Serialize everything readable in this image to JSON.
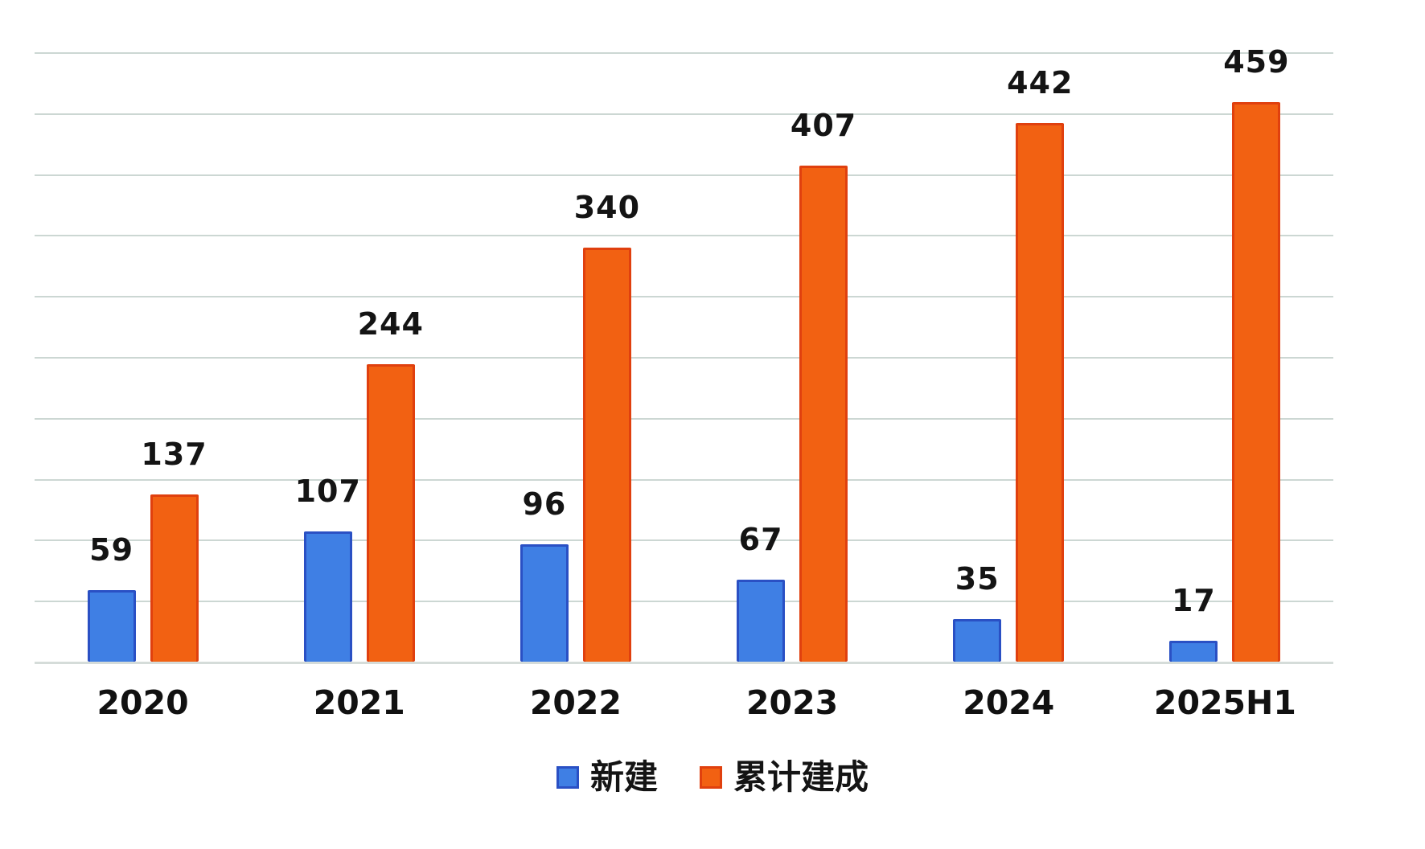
{
  "chart_data": {
    "type": "bar",
    "categories": [
      "2020",
      "2021",
      "2022",
      "2023",
      "2024",
      "2025H1"
    ],
    "series": [
      {
        "name": "新建",
        "values": [
          59,
          107,
          96,
          67,
          35,
          17
        ],
        "fill": "#3f7fe4",
        "border": "#2a50c4"
      },
      {
        "name": "累计建成",
        "values": [
          137,
          244,
          340,
          407,
          442,
          459
        ],
        "fill": "#f26112",
        "border": "#e0400e"
      }
    ],
    "title": "",
    "xlabel": "",
    "ylabel": "",
    "ylim": [
      0,
      500
    ],
    "grid_step": 50,
    "grid": true,
    "legend_position": "bottom",
    "value_labels": true
  },
  "style": {
    "background": "#ffffff",
    "gridline_color": "#ccd7d3",
    "baseline_color": "#d5dcd9",
    "label_color": "#141414"
  }
}
